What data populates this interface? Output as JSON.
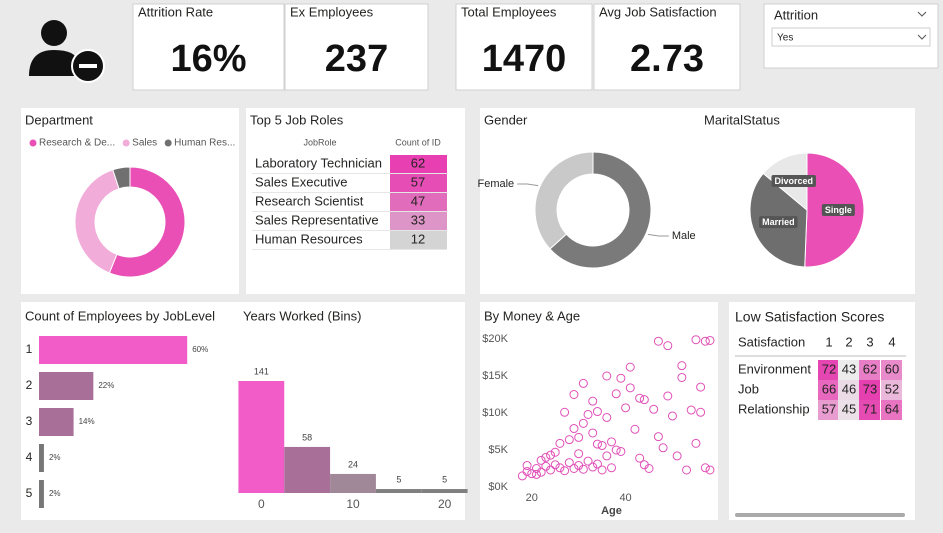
{
  "header": {
    "kpis": [
      {
        "title": "Attrition Rate",
        "value": "16%"
      },
      {
        "title": "Ex Employees",
        "value": 237
      },
      {
        "title": "Total Employees",
        "value": 1470
      },
      {
        "title": "Avg Job Satisfaction",
        "value": 2.73
      }
    ]
  },
  "slicer": {
    "title": "Attrition",
    "selected": "Yes"
  },
  "job_roles": {
    "title": "Top 5 Job Roles",
    "columns": [
      "JobRole",
      "Count of ID"
    ],
    "rows": [
      [
        "Laboratory Technician",
        62
      ],
      [
        "Sales Executive",
        57
      ],
      [
        "Research Scientist",
        47
      ],
      [
        "Sales Representative",
        33
      ],
      [
        "Human Resources",
        12
      ]
    ]
  },
  "satisfaction": {
    "title": "Low Satisfaction Scores",
    "columns": [
      "Satisfaction",
      1,
      2,
      3,
      4
    ],
    "rows": [
      [
        "Environment",
        72,
        43,
        62,
        60
      ],
      [
        "Job",
        66,
        46,
        73,
        52
      ],
      [
        "Relationship",
        57,
        45,
        71,
        64
      ]
    ]
  },
  "chart_data": [
    {
      "type": "donut",
      "title": "Department",
      "categories": [
        "Research & De...",
        "Sales",
        "Human Res..."
      ],
      "values": [
        133,
        92,
        12
      ],
      "colors": [
        "#e94fb5",
        "#f2acd9",
        "#707070"
      ],
      "legend": "top"
    },
    {
      "type": "donut",
      "title": "Gender",
      "categories": [
        "Male",
        "Female"
      ],
      "values": [
        150,
        87
      ],
      "colors": [
        "#7a7a7a",
        "#c9c9c9"
      ]
    },
    {
      "type": "pie",
      "title": "MaritalStatus",
      "categories": [
        "Single",
        "Married",
        "Divorced"
      ],
      "values": [
        120,
        84,
        33
      ],
      "colors": [
        "#e94fb5",
        "#6e6e6e",
        "#e8e8e8"
      ]
    },
    {
      "type": "bar",
      "orientation": "horizontal",
      "title": "Count of Employees by JobLevel",
      "categories": [
        "1",
        "2",
        "3",
        "4",
        "5"
      ],
      "values": [
        60,
        22,
        14,
        2,
        2
      ],
      "value_labels": [
        "60%",
        "22%",
        "14%",
        "2%",
        "2%"
      ],
      "colors": [
        "#f25cc8",
        "#a86f98",
        "#a86f98",
        "#777777",
        "#777777"
      ]
    },
    {
      "type": "bar",
      "orientation": "vertical",
      "title": "Years Worked (Bins)",
      "x": [
        0,
        5,
        10,
        15,
        20
      ],
      "values": [
        141,
        58,
        24,
        5,
        5
      ],
      "xlim": [
        -2,
        22
      ],
      "xticks": [
        0,
        10,
        20
      ],
      "colors": [
        "#f25cc8",
        "#a86f98",
        "#a08898",
        "#808080",
        "#808080"
      ]
    },
    {
      "type": "scatter",
      "title": "By Money & Age",
      "x_label": "Age",
      "color": "#e050b8",
      "x": [
        18,
        19,
        20,
        21,
        22,
        23,
        24,
        25,
        26,
        27,
        28,
        29,
        30,
        31,
        32,
        33,
        34,
        35,
        36,
        37,
        19,
        21,
        23,
        25,
        26,
        28,
        29,
        30,
        31,
        32,
        33,
        34,
        35,
        36,
        37,
        38,
        39,
        40,
        41,
        42,
        43,
        44,
        45,
        46,
        47,
        48,
        49,
        50,
        51,
        52,
        53,
        54,
        55,
        56,
        57,
        58,
        27,
        29,
        31,
        33,
        36,
        39,
        41,
        43,
        47,
        49,
        55,
        57,
        58,
        52,
        56,
        44,
        38,
        34,
        30,
        24,
        22
      ],
      "values": [
        1500,
        2100,
        1800,
        2500,
        2000,
        2800,
        2300,
        3000,
        2600,
        2200,
        3300,
        2500,
        2900,
        2400,
        3500,
        2700,
        3100,
        2300,
        4200,
        2600,
        2900,
        1700,
        4000,
        4700,
        5900,
        6400,
        7900,
        4500,
        8600,
        9800,
        7300,
        10200,
        5600,
        9400,
        6100,
        12600,
        4800,
        10700,
        13400,
        7800,
        3900,
        11800,
        2500,
        10500,
        6800,
        5300,
        12300,
        9600,
        4200,
        16400,
        2300,
        10400,
        5900,
        13500,
        2600,
        2300,
        10100,
        12500,
        14000,
        11600,
        15000,
        14700,
        16200,
        12000,
        19700,
        19100,
        19900,
        19700,
        19800,
        14800,
        10100,
        3000,
        5000,
        5800,
        6700,
        4300,
        3600
      ],
      "xlim": [
        16,
        58
      ],
      "xticks": [
        20,
        40
      ],
      "ylim": [
        0,
        20000
      ],
      "yticks": [
        {
          "value": 0,
          "label": "$0K"
        },
        {
          "value": 5000,
          "label": "$5K"
        },
        {
          "value": 10000,
          "label": "$10K"
        },
        {
          "value": 15000,
          "label": "$15K"
        },
        {
          "value": 20000,
          "label": "$20K"
        }
      ]
    }
  ]
}
